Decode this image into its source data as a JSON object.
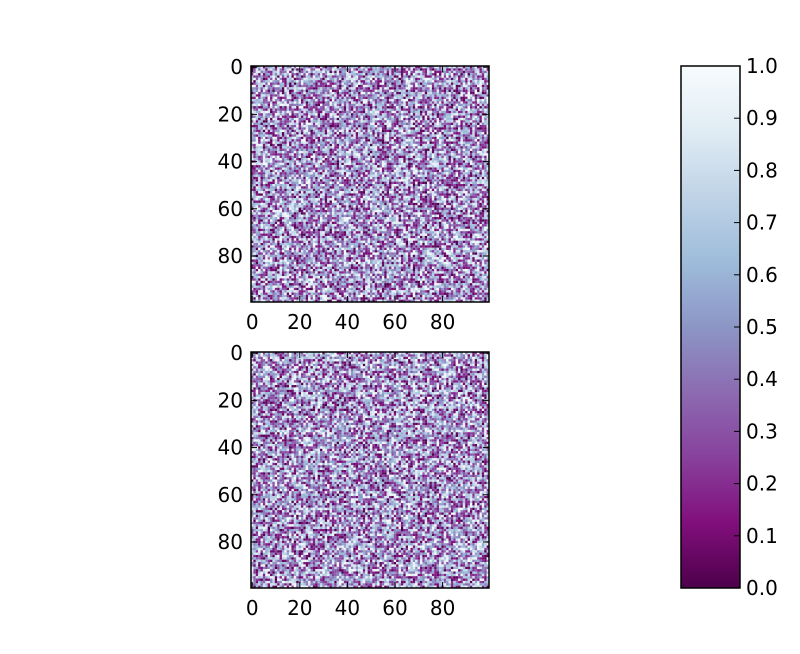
{
  "chart_data": [
    {
      "type": "heatmap",
      "title": "",
      "xlabel": "",
      "ylabel": "",
      "rows": 100,
      "cols": 100,
      "value_range": [
        0,
        1
      ],
      "value_distribution": "uniform random noise",
      "xlim": [
        -0.5,
        99.5
      ],
      "ylim": [
        99.5,
        -0.5
      ],
      "x_ticks": [
        0,
        20,
        40,
        60,
        80
      ],
      "x_tick_labels": [
        "0",
        "20",
        "40",
        "60",
        "80"
      ],
      "y_ticks": [
        0,
        20,
        40,
        60,
        80
      ],
      "y_tick_labels": [
        "0",
        "20",
        "40",
        "60",
        "80"
      ],
      "colormap": "BuPu_r",
      "grid": false
    },
    {
      "type": "heatmap",
      "title": "",
      "xlabel": "",
      "ylabel": "",
      "rows": 100,
      "cols": 100,
      "value_range": [
        0,
        1
      ],
      "value_distribution": "uniform random noise",
      "xlim": [
        -0.5,
        99.5
      ],
      "ylim": [
        99.5,
        -0.5
      ],
      "x_ticks": [
        0,
        20,
        40,
        60,
        80
      ],
      "x_tick_labels": [
        "0",
        "20",
        "40",
        "60",
        "80"
      ],
      "y_ticks": [
        0,
        20,
        40,
        60,
        80
      ],
      "y_tick_labels": [
        "0",
        "20",
        "40",
        "60",
        "80"
      ],
      "colormap": "BuPu_r",
      "grid": false
    }
  ],
  "colorbar": {
    "range": [
      0,
      1
    ],
    "ticks": [
      0,
      0.1,
      0.2,
      0.3,
      0.4,
      0.5,
      0.6,
      0.7,
      0.8,
      0.9,
      1.0
    ],
    "tick_labels": [
      "0.0",
      "0.1",
      "0.2",
      "0.3",
      "0.4",
      "0.5",
      "0.6",
      "0.7",
      "0.8",
      "0.9",
      "1.0"
    ],
    "colormap": "BuPu_r",
    "color_stops": [
      "#4d004b",
      "#810f7c",
      "#88419d",
      "#8c6bb1",
      "#8c96c6",
      "#9ebcda",
      "#bfd3e6",
      "#e0ecf4",
      "#f7fcfd"
    ]
  }
}
